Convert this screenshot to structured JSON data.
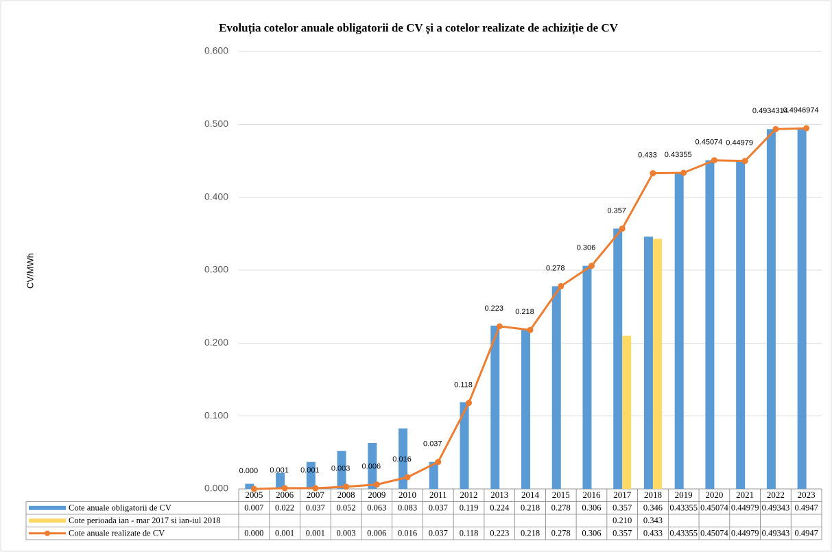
{
  "chart_data": {
    "type": "bar-line",
    "title": "Evoluția cotelor anuale obligatorii de CV și a cotelor realizate de achiziție de CV",
    "y_axis_label": "CV/MWh",
    "categories": [
      "2005",
      "2006",
      "2007",
      "2008",
      "2009",
      "2010",
      "2011",
      "2012",
      "2013",
      "2014",
      "2015",
      "2016",
      "2017",
      "2018",
      "2019",
      "2020",
      "2021",
      "2022",
      "2023"
    ],
    "ylim": [
      0,
      0.6
    ],
    "yticks": [
      {
        "value": 0,
        "label": "0.000"
      },
      {
        "value": 0.1,
        "label": "0.100"
      },
      {
        "value": 0.2,
        "label": "0.200"
      },
      {
        "value": 0.3,
        "label": "0.300"
      },
      {
        "value": 0.4,
        "label": "0.400"
      },
      {
        "value": 0.5,
        "label": "0.500"
      },
      {
        "value": 0.6,
        "label": "0.600"
      }
    ],
    "grid": true,
    "series": [
      {
        "name": "Cote anuale obligatorii de CV",
        "type": "bar",
        "color": "#5b9bd5",
        "values": [
          0.007,
          0.022,
          0.037,
          0.052,
          0.063,
          0.083,
          0.037,
          0.119,
          0.224,
          0.218,
          0.278,
          0.306,
          0.357,
          0.346,
          0.43355,
          0.45074,
          0.44979,
          0.49343,
          0.4947
        ],
        "table_labels": [
          "0.007",
          "0.022",
          "0.037",
          "0.052",
          "0.063",
          "0.083",
          "0.037",
          "0.119",
          "0.224",
          "0.218",
          "0.278",
          "0.306",
          "0.357",
          "0.346",
          "0.43355",
          "0.45074",
          "0.44979",
          "0.49343",
          "0.4947"
        ]
      },
      {
        "name": "Cote perioada ian - mar 2017 si ian-iul 2018",
        "type": "bar",
        "color": "#ffd966",
        "values": [
          null,
          null,
          null,
          null,
          null,
          null,
          null,
          null,
          null,
          null,
          null,
          null,
          0.21,
          0.343,
          null,
          null,
          null,
          null,
          null
        ],
        "table_labels": [
          null,
          null,
          null,
          null,
          null,
          null,
          null,
          null,
          null,
          null,
          null,
          null,
          "0.210",
          "0.343",
          null,
          null,
          null,
          null,
          null
        ]
      },
      {
        "name": "Cote anuale realizate de CV",
        "type": "line",
        "color": "#ed7d31",
        "values": [
          0,
          0.001,
          0.001,
          0.003,
          0.006,
          0.016,
          0.037,
          0.118,
          0.223,
          0.218,
          0.278,
          0.306,
          0.357,
          0.433,
          0.43355,
          0.45074,
          0.44979,
          0.4934314,
          0.4946974
        ],
        "value_labels": [
          "0.000",
          "0.001",
          "0.001",
          "0.003",
          "0.006",
          "0.016",
          "0.037",
          "0.118",
          "0.223",
          "0.218",
          "0.278",
          "0.306",
          "0.357",
          "0.433",
          "0.43355",
          "0.45074",
          "0.44979",
          "0.4934314",
          "0.4946974"
        ],
        "table_labels": [
          "0.000",
          "0.001",
          "0.001",
          "0.003",
          "0.006",
          "0.016",
          "0.037",
          "0.118",
          "0.223",
          "0.218",
          "0.278",
          "0.306",
          "0.357",
          "0.433",
          "0.43355",
          "0.45074",
          "0.44979",
          "0.49343",
          "0.4947"
        ]
      }
    ]
  }
}
